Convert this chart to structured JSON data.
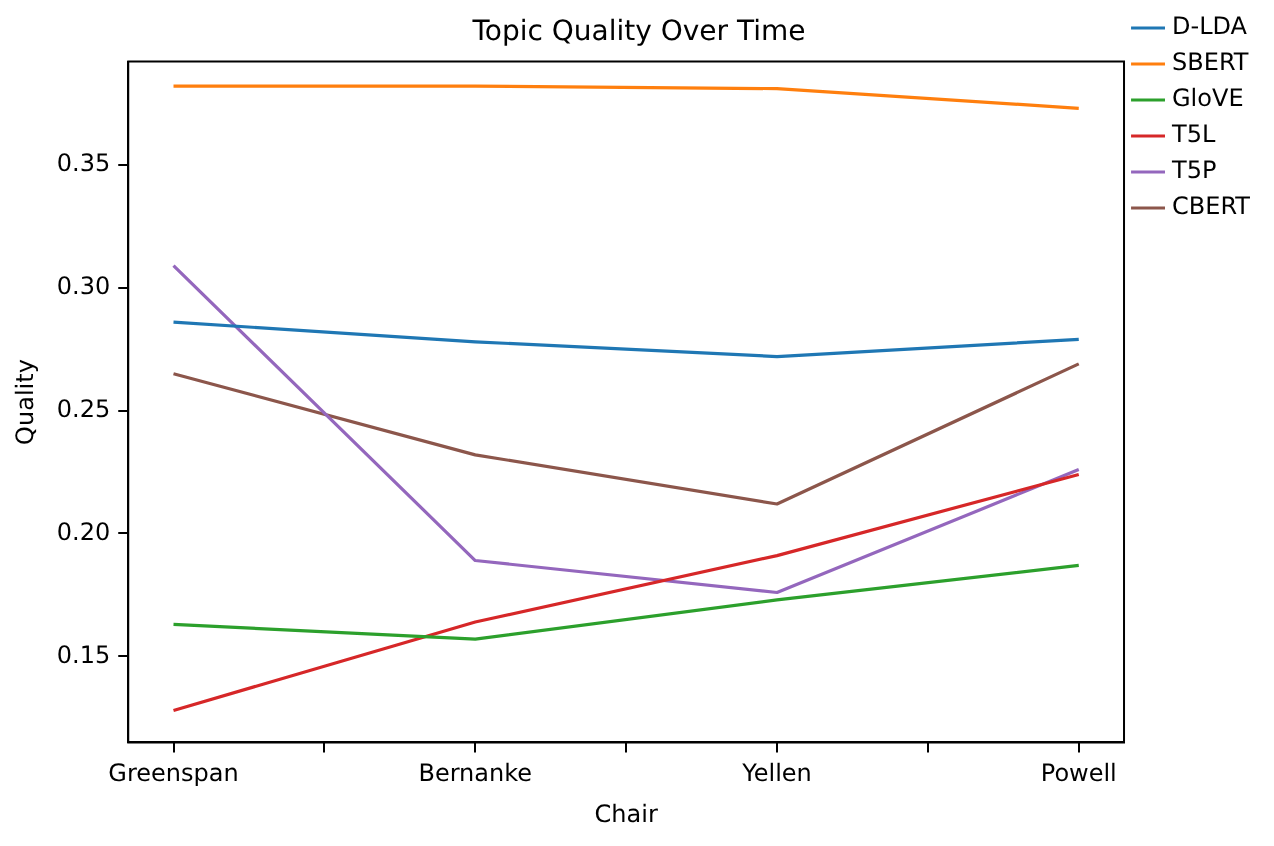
{
  "chart_data": {
    "type": "line",
    "title": "Topic Quality Over Time",
    "xlabel": "Chair",
    "ylabel": "Quality",
    "categories": [
      "Greenspan",
      "Bernanke",
      "Yellen",
      "Powell"
    ],
    "ylim": [
      0.115,
      0.392
    ],
    "yticks": [
      {
        "value": 0.15,
        "label": "0.15"
      },
      {
        "value": 0.2,
        "label": "0.20"
      },
      {
        "value": 0.25,
        "label": "0.25"
      },
      {
        "value": 0.3,
        "label": "0.30"
      },
      {
        "value": 0.35,
        "label": "0.35"
      }
    ],
    "series": [
      {
        "name": "D-LDA",
        "color": "#1f77b4",
        "values": [
          0.286,
          0.278,
          0.272,
          0.279
        ]
      },
      {
        "name": "SBERT",
        "color": "#ff7f0e",
        "values": [
          0.382,
          0.382,
          0.381,
          0.373
        ]
      },
      {
        "name": "GloVE",
        "color": "#2ca02c",
        "values": [
          0.163,
          0.157,
          0.173,
          0.187
        ]
      },
      {
        "name": "T5L",
        "color": "#d62728",
        "values": [
          0.128,
          0.164,
          0.191,
          0.224
        ]
      },
      {
        "name": "T5P",
        "color": "#9467bd",
        "values": [
          0.309,
          0.189,
          0.176,
          0.226
        ]
      },
      {
        "name": "CBERT",
        "color": "#8c564b",
        "values": [
          0.265,
          0.232,
          0.212,
          0.269
        ]
      }
    ],
    "legend": "top right",
    "grid": false,
    "marker": "none",
    "line_style": "solid"
  }
}
